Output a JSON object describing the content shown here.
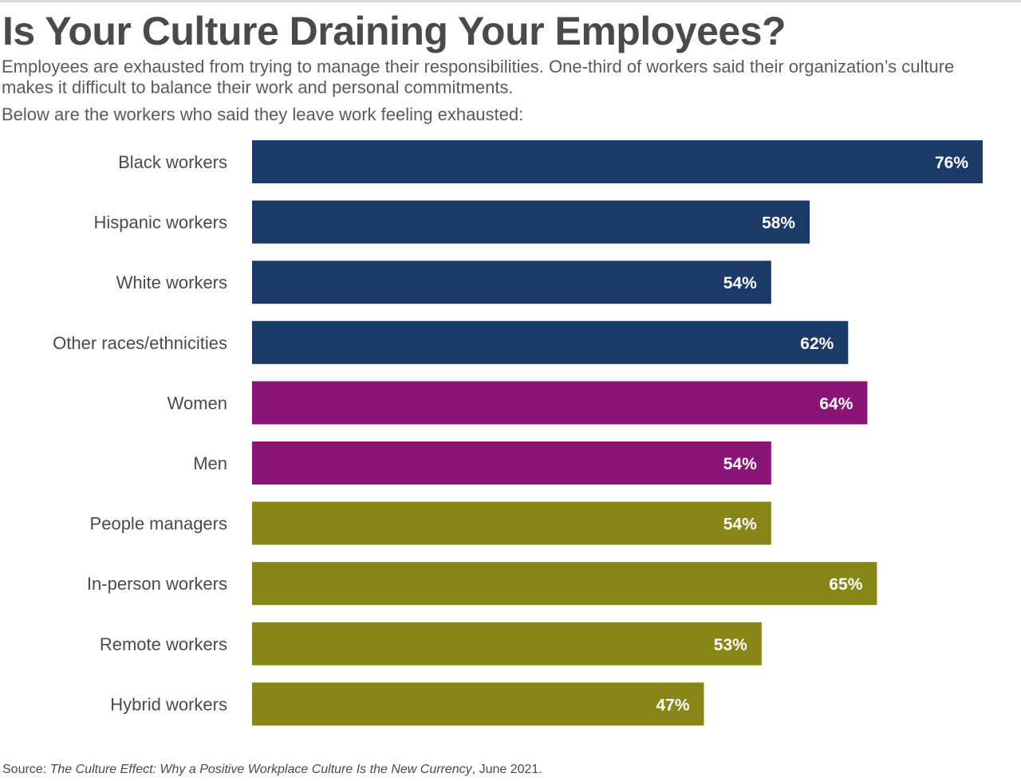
{
  "title": "Is Your Culture Draining Your Employees?",
  "subtitle": "Employees are exhausted from trying to manage their responsibilities. One-third of workers said their organization’s culture makes it difficult to balance their work and personal commitments.",
  "intro": "Below are the workers who said they leave work feeling exhausted:",
  "source": {
    "prefix": "Source: ",
    "publication": "The Culture Effect: Why a Positive Workplace Culture Is the New Currency",
    "suffix": ", June 2021."
  },
  "colors": {
    "race_group": "#1c3a68",
    "gender_group": "#8a1577",
    "work_group": "#878617",
    "value_label": "#ffffff"
  },
  "chart_data": {
    "type": "bar",
    "orientation": "horizontal",
    "title": "",
    "xlabel": "",
    "ylabel": "",
    "xlim": [
      0,
      76
    ],
    "unit": "%",
    "grid": false,
    "categories": [
      "Black workers",
      "Hispanic workers",
      "White workers",
      "Other races/ethnicities",
      "Women",
      "Men",
      "People managers",
      "In-person workers",
      "Remote workers",
      "Hybrid workers"
    ],
    "values": [
      76,
      58,
      54,
      62,
      64,
      54,
      54,
      65,
      53,
      47
    ],
    "value_labels": [
      "76%",
      "58%",
      "54%",
      "62%",
      "64%",
      "54%",
      "54%",
      "65%",
      "53%",
      "47%"
    ],
    "bar_groups": [
      "race_group",
      "race_group",
      "race_group",
      "race_group",
      "gender_group",
      "gender_group",
      "work_group",
      "work_group",
      "work_group",
      "work_group"
    ]
  }
}
